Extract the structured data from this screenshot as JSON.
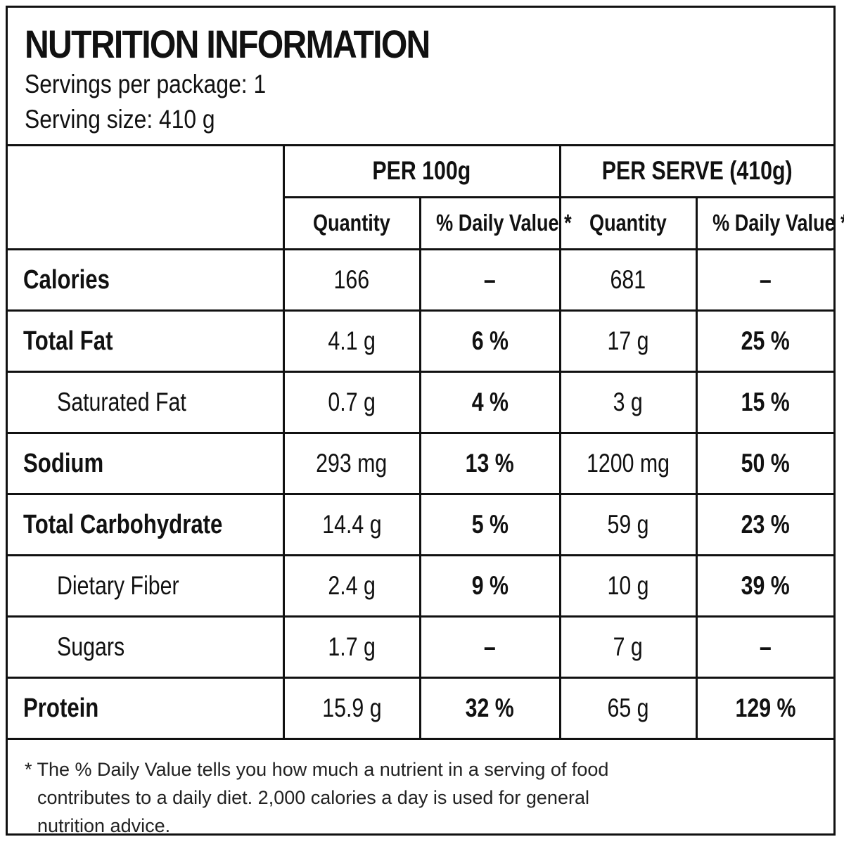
{
  "header": {
    "title": "NUTRITION INFORMATION",
    "servings_per_package": "Servings per package: 1",
    "serving_size": "Serving size: 410 g"
  },
  "table": {
    "group_headers": [
      "PER 100g",
      "PER SERVE (410g)"
    ],
    "sub_headers": [
      "Quantity",
      "% Daily Value *",
      "Quantity",
      "% Daily Value *"
    ],
    "rows": [
      {
        "label": "Calories",
        "level": "main",
        "per100_qty": "166",
        "per100_dv": "–",
        "serve_qty": "681",
        "serve_dv": "–"
      },
      {
        "label": "Total Fat",
        "level": "main",
        "per100_qty": "4.1 g",
        "per100_dv": "6 %",
        "serve_qty": "17 g",
        "serve_dv": "25 %"
      },
      {
        "label": "Saturated Fat",
        "level": "sub",
        "per100_qty": "0.7 g",
        "per100_dv": "4 %",
        "serve_qty": "3 g",
        "serve_dv": "15 %"
      },
      {
        "label": "Sodium",
        "level": "main",
        "per100_qty": "293 mg",
        "per100_dv": "13 %",
        "serve_qty": "1200 mg",
        "serve_dv": "50 %"
      },
      {
        "label": "Total Carbohydrate",
        "level": "main",
        "per100_qty": "14.4 g",
        "per100_dv": "5 %",
        "serve_qty": "59 g",
        "serve_dv": "23 %"
      },
      {
        "label": "Dietary Fiber",
        "level": "sub",
        "per100_qty": "2.4 g",
        "per100_dv": "9 %",
        "serve_qty": "10 g",
        "serve_dv": "39 %"
      },
      {
        "label": "Sugars",
        "level": "sub",
        "per100_qty": "1.7 g",
        "per100_dv": "–",
        "serve_qty": "7 g",
        "serve_dv": "–"
      },
      {
        "label": "Protein",
        "level": "main",
        "per100_qty": "15.9 g",
        "per100_dv": "32 %",
        "serve_qty": "65 g",
        "serve_dv": "129 %"
      }
    ]
  },
  "footnote": "* The % Daily Value tells you how much a nutrient in a serving of food contributes to a daily diet. 2,000 calories a day is used for general nutrition advice.",
  "colors": {
    "ink": "#111111",
    "background": "#ffffff"
  }
}
